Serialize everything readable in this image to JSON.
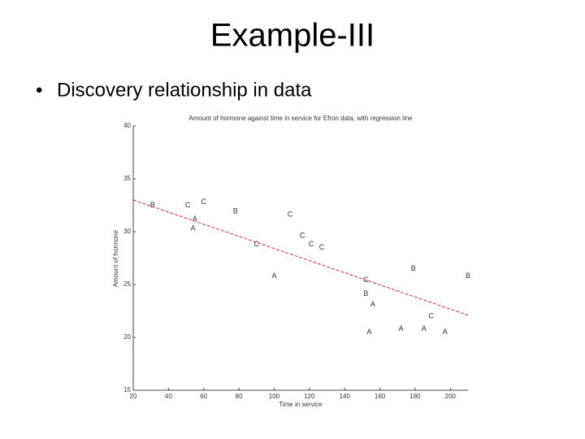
{
  "title": "Example-III",
  "bullets": [
    "Discovery relationship in data"
  ],
  "chart_data": {
    "type": "scatter",
    "title": "Amount of hormone against time in service for Efron data, with regression line",
    "xlabel": "Time in service",
    "ylabel": "Amount of hormone",
    "xlim": [
      20,
      210
    ],
    "ylim": [
      15,
      40
    ],
    "xticks": [
      20,
      40,
      60,
      80,
      100,
      120,
      140,
      160,
      180,
      200
    ],
    "yticks": [
      15,
      20,
      25,
      30,
      35,
      40
    ],
    "series": [
      {
        "name": "A",
        "color": "#333333",
        "x": [
          55,
          54,
          100,
          156,
          154,
          172,
          185,
          197
        ],
        "y": [
          31.2,
          30.3,
          25.8,
          23.1,
          20.5,
          20.8,
          20.8,
          20.5
        ]
      },
      {
        "name": "B",
        "color": "#333333",
        "x": [
          31,
          78,
          152,
          179,
          210
        ],
        "y": [
          32.5,
          31.9,
          24.1,
          26.5,
          25.8
        ]
      },
      {
        "name": "C",
        "color": "#333333",
        "x": [
          51,
          60,
          90,
          109,
          116,
          121,
          127,
          152,
          189
        ],
        "y": [
          32.5,
          32.8,
          28.8,
          31.6,
          29.6,
          28.8,
          28.5,
          25.4,
          22.0
        ]
      }
    ],
    "regression_line": {
      "color": "#e03030",
      "x": [
        20,
        210
      ],
      "y": [
        33,
        22.1
      ]
    }
  }
}
